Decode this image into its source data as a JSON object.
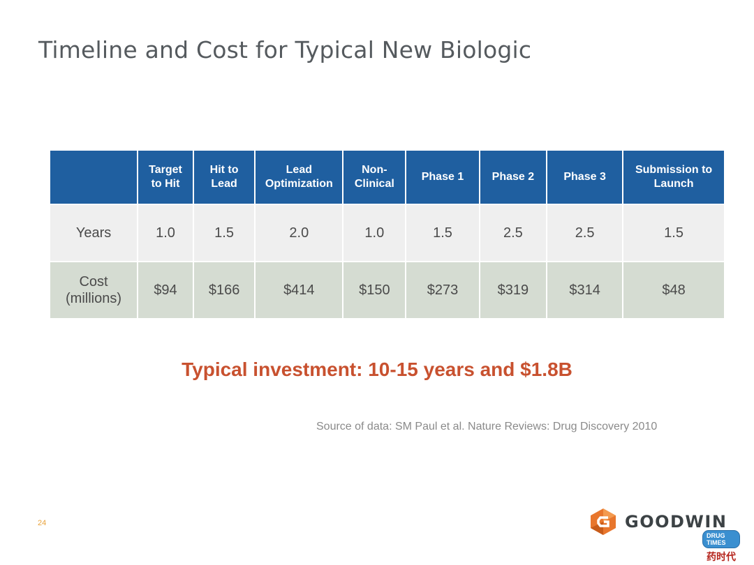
{
  "slide": {
    "title": "Timeline and Cost for Typical New Biologic",
    "page_number": "24"
  },
  "table": {
    "corner": "",
    "headers": [
      [
        "Target",
        "to Hit"
      ],
      [
        "Hit to",
        "Lead"
      ],
      [
        "Lead",
        "Optimization"
      ],
      [
        "Non-",
        "Clinical"
      ],
      [
        "Phase 1"
      ],
      [
        "Phase 2"
      ],
      [
        "Phase 3"
      ],
      [
        "Submission to",
        "Launch"
      ]
    ],
    "rows": [
      {
        "label": [
          "Years"
        ],
        "values": [
          "1.0",
          "1.5",
          "2.0",
          "1.0",
          "1.5",
          "2.5",
          "2.5",
          "1.5"
        ]
      },
      {
        "label": [
          "Cost",
          "(millions)"
        ],
        "values": [
          "$94",
          "$166",
          "$414",
          "$150",
          "$273",
          "$319",
          "$314",
          "$48"
        ]
      }
    ]
  },
  "headline": "Typical investment:  10-15 years and $1.8B",
  "source_note": "Source of data:  SM Paul et al. Nature Reviews: Drug Discovery 2010",
  "logo": {
    "text": "GOODWIN",
    "icon": "goodwin-g-hexagon-icon",
    "color": "#e8762d"
  },
  "watermark": {
    "badge": "DRUG TIMES",
    "text": "药时代"
  },
  "colors": {
    "header_bg": "#1f5fa0",
    "row_years_bg": "#efefef",
    "row_cost_bg": "#d5dcd2",
    "headline": "#c8512f",
    "page_number": "#e8a23a"
  }
}
